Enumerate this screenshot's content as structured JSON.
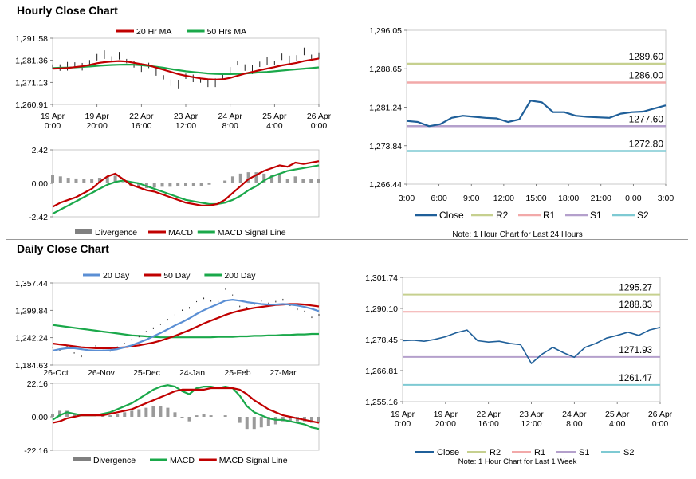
{
  "hourly": {
    "title": "Hourly Close Chart",
    "price_chart": {
      "type": "line",
      "legend": [
        {
          "name": "20 Hr MA",
          "color": "#c00000"
        },
        {
          "name": "50 Hrs MA",
          "color": "#1aa84a"
        }
      ],
      "ytick_labels": [
        "1,291.58",
        "1,281.36",
        "1,271.13",
        "1,260.91"
      ],
      "yticks": [
        1291.58,
        1281.36,
        1271.13,
        1260.91
      ],
      "ylim": [
        1260.91,
        1291.58
      ],
      "xtick_labels": [
        [
          "19 Apr",
          "0:00"
        ],
        [
          "19 Apr",
          "20:00"
        ],
        [
          "22 Apr",
          "16:00"
        ],
        [
          "23 Apr",
          "12:00"
        ],
        [
          "24 Apr",
          "8:00"
        ],
        [
          "25 Apr",
          "4:00"
        ],
        [
          "26 Apr",
          "0:00"
        ]
      ],
      "close": [
        1278.5,
        1278.0,
        1278.6,
        1279.2,
        1278.4,
        1280.5,
        1282.8,
        1284.0,
        1282.0,
        1283.5,
        1281.0,
        1279.5,
        1278.0,
        1279.0,
        1276.0,
        1273.5,
        1271.0,
        1270.0,
        1274.0,
        1273.0,
        1272.0,
        1270.5,
        1271.0,
        1273.5,
        1276.5,
        1280.0,
        1278.0,
        1277.0,
        1279.5,
        1281.0,
        1280.0,
        1283.0,
        1281.5,
        1282.5,
        1285.5,
        1283.0,
        1283.5
      ],
      "ma20": [
        1277.5,
        1277.6,
        1277.8,
        1278.2,
        1278.6,
        1279.2,
        1280.0,
        1280.5,
        1280.8,
        1281.0,
        1280.8,
        1280.2,
        1279.6,
        1279.0,
        1278.0,
        1277.0,
        1276.0,
        1275.0,
        1274.2,
        1273.6,
        1273.0,
        1272.6,
        1272.4,
        1272.6,
        1273.2,
        1274.2,
        1275.2,
        1276.0,
        1276.8,
        1277.5,
        1278.2,
        1279.0,
        1279.6,
        1280.2,
        1281.0,
        1281.6,
        1282.2
      ],
      "ma50": [
        1277.8,
        1277.9,
        1278.0,
        1278.1,
        1278.3,
        1278.5,
        1278.8,
        1279.0,
        1279.2,
        1279.3,
        1279.4,
        1279.3,
        1279.1,
        1278.8,
        1278.4,
        1277.9,
        1277.3,
        1276.8,
        1276.3,
        1275.9,
        1275.6,
        1275.3,
        1275.1,
        1275.0,
        1275.0,
        1275.1,
        1275.3,
        1275.5,
        1275.8,
        1276.0,
        1276.3,
        1276.6,
        1276.9,
        1277.2,
        1277.5,
        1277.8,
        1278.1
      ]
    },
    "macd_chart": {
      "type": "line",
      "legend": [
        {
          "name": "Divergence",
          "color": "#808080"
        },
        {
          "name": "MACD",
          "color": "#c00000"
        },
        {
          "name": "MACD Signal Line",
          "color": "#1aa84a"
        }
      ],
      "ytick_labels": [
        "2.42",
        "0.00",
        "-2.42"
      ],
      "yticks": [
        2.42,
        0.0,
        -2.42
      ],
      "ylim": [
        -2.42,
        2.42
      ],
      "macd": [
        -1.7,
        -1.4,
        -1.2,
        -1.0,
        -0.7,
        -0.4,
        0.1,
        0.5,
        0.7,
        0.3,
        -0.1,
        -0.3,
        -0.5,
        -0.6,
        -0.8,
        -1.0,
        -1.2,
        -1.4,
        -1.5,
        -1.6,
        -1.6,
        -1.5,
        -1.2,
        -0.7,
        -0.2,
        0.3,
        0.6,
        0.9,
        1.1,
        1.3,
        1.2,
        1.5,
        1.4,
        1.5,
        1.6
      ],
      "signal": [
        -2.2,
        -1.9,
        -1.6,
        -1.3,
        -1.0,
        -0.7,
        -0.4,
        -0.1,
        0.1,
        0.2,
        0.1,
        0.0,
        -0.2,
        -0.4,
        -0.6,
        -0.8,
        -1.0,
        -1.2,
        -1.3,
        -1.4,
        -1.5,
        -1.5,
        -1.4,
        -1.2,
        -0.9,
        -0.5,
        -0.2,
        0.2,
        0.5,
        0.7,
        0.9,
        1.0,
        1.1,
        1.2,
        1.3
      ],
      "divergence": [
        0.6,
        0.5,
        0.4,
        0.35,
        0.3,
        0.3,
        0.4,
        0.5,
        0.55,
        0.1,
        -0.2,
        -0.3,
        -0.35,
        -0.3,
        -0.25,
        -0.25,
        -0.2,
        -0.2,
        -0.2,
        -0.2,
        -0.1,
        0.0,
        0.2,
        0.5,
        0.7,
        0.8,
        0.8,
        0.7,
        0.6,
        0.6,
        0.3,
        0.5,
        0.3,
        0.3,
        0.3
      ]
    },
    "levels_chart": {
      "type": "line",
      "ytick_labels": [
        "1,296.05",
        "1,288.65",
        "1,281.24",
        "1,273.84",
        "1,266.44"
      ],
      "yticks": [
        1296.05,
        1288.65,
        1281.24,
        1273.84,
        1266.44
      ],
      "ylim": [
        1266.44,
        1296.05
      ],
      "xtick_labels": [
        "3:00",
        "6:00",
        "9:00",
        "12:00",
        "15:00",
        "18:00",
        "21:00",
        "0:00",
        "3:00"
      ],
      "close": [
        1278.6,
        1278.4,
        1277.6,
        1278.0,
        1279.2,
        1279.6,
        1279.4,
        1279.2,
        1279.1,
        1278.4,
        1278.9,
        1282.5,
        1282.2,
        1280.3,
        1280.3,
        1279.6,
        1279.4,
        1279.3,
        1279.2,
        1280.0,
        1280.3,
        1280.4,
        1281.0,
        1281.6
      ],
      "levels": [
        {
          "name": "R2",
          "value": 1289.6,
          "label": "1289.60",
          "color": "#c6d08f"
        },
        {
          "name": "R1",
          "value": 1286.0,
          "label": "1286.00",
          "color": "#f2a9a9"
        },
        {
          "name": "S1",
          "value": 1277.6,
          "label": "1277.60",
          "color": "#b4a0cc"
        },
        {
          "name": "S2",
          "value": 1272.8,
          "label": "1272.80",
          "color": "#7ecad3"
        }
      ],
      "close_color": "#1f5f99",
      "legend": [
        "Close",
        "R2",
        "R1",
        "S1",
        "S2"
      ],
      "note": "Note: 1 Hour Chart for Last 24 Hours"
    }
  },
  "daily": {
    "title": "Daily Close Chart",
    "price_chart": {
      "type": "line",
      "legend": [
        {
          "name": "20 Day",
          "color": "#5b8fd4"
        },
        {
          "name": "50 Day",
          "color": "#c00000"
        },
        {
          "name": "200 Day",
          "color": "#1aa84a"
        }
      ],
      "ytick_labels": [
        "1,357.44",
        "1,299.84",
        "1,242.24",
        "1,184.63"
      ],
      "yticks": [
        1357.44,
        1299.84,
        1242.24,
        1184.63
      ],
      "ylim": [
        1184.63,
        1357.44
      ],
      "xtick_labels": [
        "26-Oct",
        "26-Nov",
        "25-Dec",
        "24-Jan",
        "25-Feb",
        "27-Mar"
      ],
      "close": [
        1222,
        1215,
        1225,
        1210,
        1203,
        1215,
        1225,
        1220,
        1214,
        1222,
        1230,
        1238,
        1245,
        1255,
        1262,
        1270,
        1280,
        1290,
        1300,
        1305,
        1318,
        1325,
        1320,
        1318,
        1345,
        1332,
        1308,
        1305,
        1312,
        1320,
        1315,
        1318,
        1322,
        1310,
        1302,
        1298,
        1285,
        1290
      ],
      "ma20": [
        1215,
        1218,
        1220,
        1220,
        1218,
        1216,
        1215,
        1215,
        1216,
        1218,
        1222,
        1226,
        1232,
        1238,
        1245,
        1252,
        1260,
        1268,
        1275,
        1283,
        1292,
        1300,
        1307,
        1313,
        1320,
        1322,
        1320,
        1317,
        1315,
        1313,
        1312,
        1312,
        1313,
        1312,
        1310,
        1307,
        1303,
        1298
      ],
      "ma50": [
        1230,
        1228,
        1226,
        1224,
        1222,
        1221,
        1220,
        1220,
        1220,
        1221,
        1222,
        1224,
        1226,
        1229,
        1232,
        1236,
        1241,
        1246,
        1252,
        1258,
        1265,
        1272,
        1278,
        1284,
        1290,
        1295,
        1299,
        1302,
        1305,
        1307,
        1309,
        1311,
        1312,
        1313,
        1313,
        1312,
        1310,
        1308
      ],
      "ma200": [
        1269,
        1267,
        1265,
        1263,
        1261,
        1259,
        1257,
        1255,
        1253,
        1251,
        1249,
        1247,
        1246,
        1245,
        1244,
        1243,
        1243,
        1243,
        1243,
        1243,
        1243,
        1243,
        1243,
        1244,
        1244,
        1244,
        1245,
        1245,
        1246,
        1246,
        1247,
        1247,
        1248,
        1248,
        1249,
        1249,
        1250,
        1250
      ]
    },
    "macd_chart": {
      "type": "line",
      "legend": [
        {
          "name": "Divergence",
          "color": "#808080"
        },
        {
          "name": "MACD",
          "color": "#1aa84a"
        },
        {
          "name": "MACD Signal Line",
          "color": "#c00000"
        }
      ],
      "ytick_labels": [
        "22.16",
        "0.00",
        "-22.16"
      ],
      "yticks": [
        22.16,
        0.0,
        -22.16
      ],
      "ylim": [
        -22.16,
        22.16
      ],
      "macd": [
        -2,
        1,
        3,
        2,
        1,
        1,
        1,
        2,
        3,
        5,
        7,
        9,
        12,
        15,
        18,
        20,
        21,
        20,
        17,
        15,
        19,
        20,
        20,
        19,
        20,
        19,
        14,
        7,
        3,
        1,
        -1,
        -2,
        -2,
        -3,
        -4,
        -5,
        -7,
        -8
      ],
      "signal": [
        -4,
        -3,
        -1,
        0,
        1,
        1,
        1,
        1,
        2,
        3,
        4,
        5,
        7,
        9,
        11,
        13,
        15,
        17,
        18,
        18,
        18,
        18,
        19,
        19,
        19,
        19,
        18,
        15,
        11,
        8,
        5,
        3,
        1,
        0,
        -1,
        -2,
        -3,
        -4
      ],
      "divergence": [
        2,
        4,
        4,
        2,
        0,
        0,
        0,
        1,
        1,
        2,
        3,
        4,
        5,
        6,
        7,
        7,
        6,
        3,
        -1,
        -3,
        1,
        2,
        1,
        0,
        1,
        0,
        -4,
        -8,
        -8,
        -7,
        -6,
        -5,
        -3,
        -3,
        -3,
        -3,
        -4,
        -4
      ]
    },
    "levels_chart": {
      "type": "line",
      "ytick_labels": [
        "1,301.74",
        "1,290.10",
        "1,278.45",
        "1,266.81",
        "1,255.16"
      ],
      "yticks": [
        1301.74,
        1290.1,
        1278.45,
        1266.81,
        1255.16
      ],
      "ylim": [
        1255.16,
        1301.74
      ],
      "xtick_labels": [
        [
          "19 Apr",
          "0:00"
        ],
        [
          "19 Apr",
          "20:00"
        ],
        [
          "22 Apr",
          "16:00"
        ],
        [
          "23 Apr",
          "12:00"
        ],
        [
          "24 Apr",
          "8:00"
        ],
        [
          "25 Apr",
          "4:00"
        ],
        [
          "26 Apr",
          "0:00"
        ]
      ],
      "close": [
        1278.0,
        1278.2,
        1277.8,
        1278.5,
        1279.5,
        1281.0,
        1282.0,
        1278.0,
        1277.5,
        1277.8,
        1277.0,
        1276.5,
        1269.5,
        1273.0,
        1275.5,
        1273.5,
        1271.8,
        1275.5,
        1277.0,
        1279.0,
        1280.0,
        1281.2,
        1280.0,
        1282.0,
        1283.0
      ],
      "levels": [
        {
          "name": "R2",
          "value": 1295.27,
          "label": "1295.27",
          "color": "#c6d08f"
        },
        {
          "name": "R1",
          "value": 1288.83,
          "label": "1288.83",
          "color": "#f2a9a9"
        },
        {
          "name": "S1",
          "value": 1271.93,
          "label": "1271.93",
          "color": "#b4a0cc"
        },
        {
          "name": "S2",
          "value": 1261.47,
          "label": "1261.47",
          "color": "#7ecad3"
        }
      ],
      "close_color": "#1f5f99",
      "legend": [
        "Close",
        "R2",
        "R1",
        "S1",
        "S2"
      ],
      "note": "Note: 1 Hour Chart for Last 1 Week"
    }
  }
}
